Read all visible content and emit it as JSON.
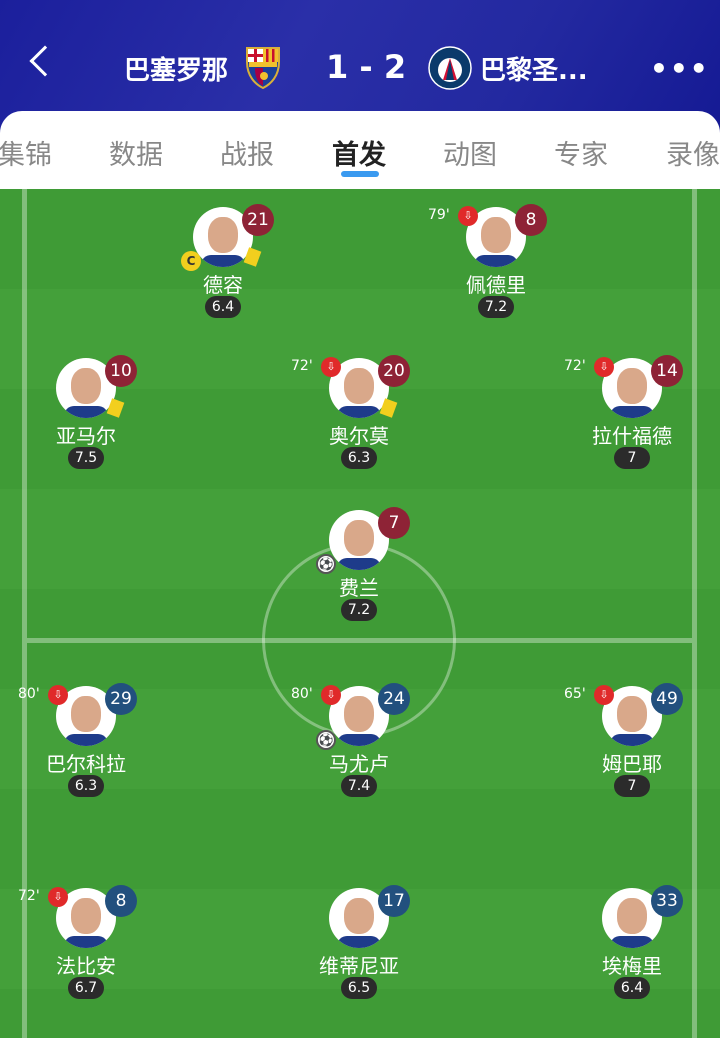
{
  "header": {
    "home_team": "巴塞罗那",
    "score": "1 - 2",
    "away_team": "巴黎圣...",
    "more": "•••"
  },
  "tabs": [
    {
      "label": "集锦"
    },
    {
      "label": "数据"
    },
    {
      "label": "战报"
    },
    {
      "label": "首发",
      "active": true
    },
    {
      "label": "动图"
    },
    {
      "label": "专家"
    },
    {
      "label": "录像"
    }
  ],
  "colors": {
    "home_number": "#8e2336",
    "away_number": "#22507e",
    "field": "#3f9b36",
    "tab_indicator": "#3a9af0"
  },
  "players": [
    {
      "name": "德容",
      "number": "21",
      "rating": "6.4",
      "team": "home",
      "captain": "C",
      "yellow_card": true
    },
    {
      "name": "佩德里",
      "number": "8",
      "rating": "7.2",
      "team": "home",
      "sub_minute": "79'"
    },
    {
      "name": "亚马尔",
      "number": "10",
      "rating": "7.5",
      "team": "home",
      "yellow_card": true
    },
    {
      "name": "奥尔莫",
      "number": "20",
      "rating": "6.3",
      "team": "home",
      "sub_minute": "72'",
      "yellow_card": true
    },
    {
      "name": "拉什福德",
      "number": "14",
      "rating": "7",
      "team": "home",
      "sub_minute": "72'"
    },
    {
      "name": "费兰",
      "number": "7",
      "rating": "7.2",
      "team": "home",
      "goal": true
    },
    {
      "name": "巴尔科拉",
      "number": "29",
      "rating": "6.3",
      "team": "away",
      "sub_minute": "80'"
    },
    {
      "name": "马尤卢",
      "number": "24",
      "rating": "7.4",
      "team": "away",
      "sub_minute": "80'",
      "goal": true
    },
    {
      "name": "姆巴耶",
      "number": "49",
      "rating": "7",
      "team": "away",
      "sub_minute": "65'"
    },
    {
      "name": "法比安",
      "number": "8",
      "rating": "6.7",
      "team": "away",
      "sub_minute": "72'"
    },
    {
      "name": "维蒂尼亚",
      "number": "17",
      "rating": "6.5",
      "team": "away"
    },
    {
      "name": "埃梅里",
      "number": "33",
      "rating": "6.4",
      "team": "away"
    }
  ]
}
